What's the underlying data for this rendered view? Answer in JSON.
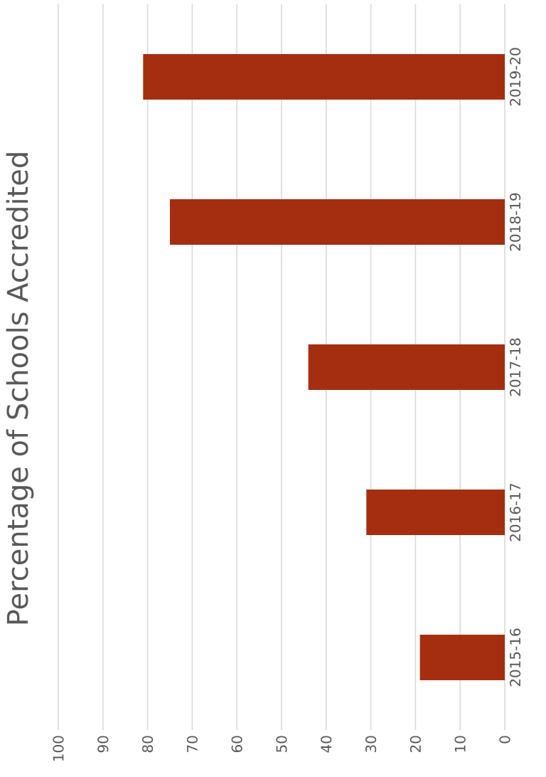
{
  "chart_data": {
    "type": "bar",
    "orientation": "horizontal",
    "title": "Percentage of Schools Accredited",
    "categories": [
      "2019-20",
      "2018-19",
      "2017-18",
      "2016-17",
      "2015-16"
    ],
    "values": [
      81,
      75,
      44,
      31,
      19
    ],
    "color": "#a52e10",
    "xlim": [
      100,
      0
    ],
    "xticks": [
      0,
      10,
      20,
      30,
      40,
      50,
      60,
      70,
      80,
      90,
      100
    ],
    "grid": "x"
  }
}
